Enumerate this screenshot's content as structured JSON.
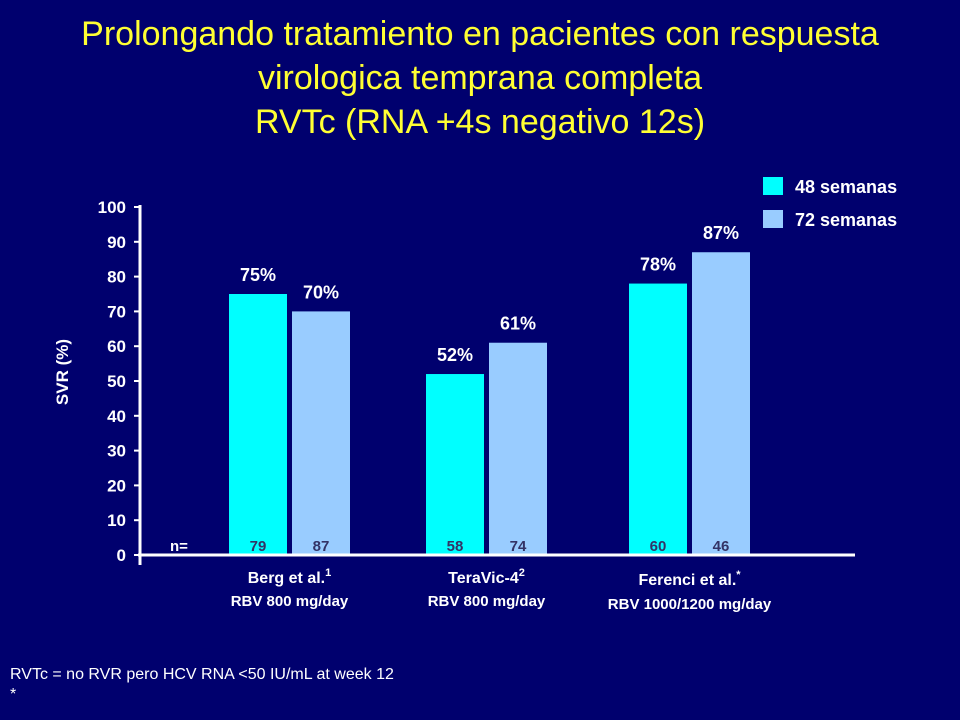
{
  "slide": {
    "title_lines": [
      "Prolongando tratamiento en pacientes con respuesta",
      "virologica temprana completa",
      "RVTc (RNA +4s negativo 12s)"
    ],
    "footnote_line1": "RVTc = no RVR pero HCV RNA <50 IU/mL at week 12",
    "footnote_line2": "*"
  },
  "colors": {
    "background": "#00006e",
    "title": "#ffff33",
    "series_48": "#00ffff",
    "series_72": "#99ccff",
    "text": "#ffffff"
  },
  "chart_data": {
    "type": "bar",
    "ylabel": "SVR (%)",
    "ylim": [
      0,
      100
    ],
    "yticks": [
      0,
      10,
      20,
      30,
      40,
      50,
      60,
      70,
      80,
      90,
      100
    ],
    "n_label": "n=",
    "legend_position": "top-right",
    "categories": [
      {
        "name": "Berg et al.",
        "sup": "1",
        "sublabel": "RBV 800 mg/day"
      },
      {
        "name": "TeraVic-4",
        "sup": "2",
        "sublabel": "RBV 800 mg/day"
      },
      {
        "name": "Ferenci et al.",
        "sup": "*",
        "sublabel": "RBV 1000/1200 mg/day"
      }
    ],
    "series": [
      {
        "name": "48 semanas",
        "values": [
          75,
          52,
          78
        ],
        "labels": [
          "75%",
          "52%",
          "78%"
        ],
        "n": [
          79,
          58,
          60
        ]
      },
      {
        "name": "72 semanas",
        "values": [
          70,
          61,
          87
        ],
        "labels": [
          "70%",
          "61%",
          "87%"
        ],
        "n": [
          87,
          74,
          46
        ]
      }
    ]
  }
}
